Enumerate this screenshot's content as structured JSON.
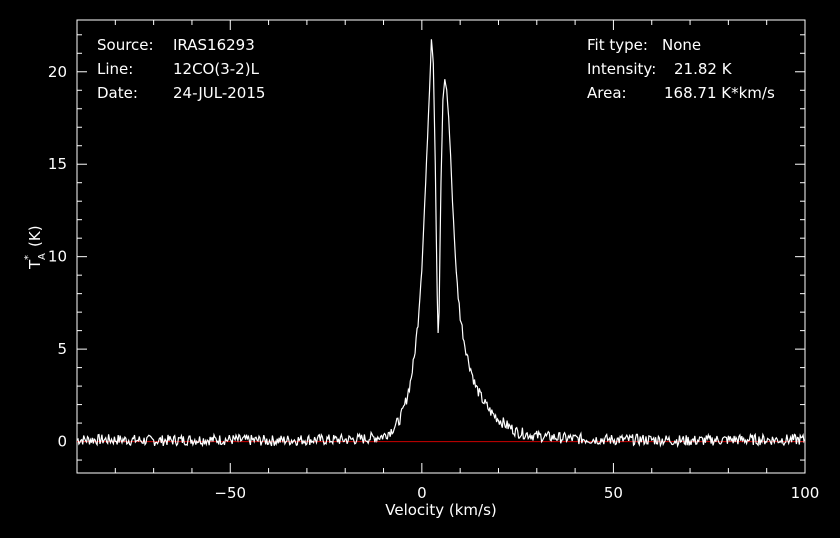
{
  "header_left": {
    "source_label": "Source:",
    "source_value": "IRAS16293",
    "line_label": "Line:",
    "line_value": "12CO(3-2)L",
    "date_label": "Date:",
    "date_value": "24-JUL-2015"
  },
  "header_right": {
    "fit_label": "Fit type:",
    "fit_value": "None",
    "intensity_label": "Intensity:",
    "intensity_value": "21.82 K",
    "area_label": "Area:",
    "area_value": "168.71 K*km/s"
  },
  "colors": {
    "background": "#000000",
    "foreground": "#ffffff",
    "baseline": "#cc0000"
  },
  "chart_data": {
    "type": "line",
    "title": "",
    "xlabel": "Velocity (km/s)",
    "ylabel_main": "T",
    "ylabel_sub": "A",
    "ylabel_sup": "*",
    "ylabel_unit": "(K)",
    "xlim": [
      -90,
      100
    ],
    "ylim": [
      -1.7,
      22.8
    ],
    "x_ticks": [
      -50,
      0,
      50,
      100
    ],
    "x_tick_labels": [
      "−50",
      "0",
      "50",
      "100"
    ],
    "y_ticks": [
      0,
      5,
      10,
      15,
      20
    ],
    "y_tick_labels": [
      "0",
      "5",
      "10",
      "15",
      "20"
    ],
    "baseline_y": 0,
    "series": [
      {
        "x": [
          -90,
          -80,
          -70,
          -60,
          -50,
          -40,
          -30,
          -20,
          -15,
          -10,
          -8,
          -6,
          -5,
          -4,
          -3,
          -2,
          -1,
          0,
          1,
          2,
          2.5,
          3,
          3.5,
          4,
          4.2,
          4.5,
          5,
          5.5,
          6,
          6.5,
          7,
          7.5,
          8,
          9,
          10,
          11,
          12,
          14,
          16,
          18,
          20,
          22,
          25,
          30,
          40,
          50,
          60,
          70,
          80,
          90,
          100
        ],
        "y": [
          0.1,
          0.1,
          0.05,
          0.1,
          0.1,
          0.05,
          0.1,
          0.1,
          0.15,
          0.3,
          0.6,
          1.1,
          1.6,
          2.3,
          3.2,
          4.5,
          6.5,
          9.5,
          14.0,
          19.0,
          21.8,
          20.5,
          15.0,
          8.0,
          5.6,
          7.0,
          14.0,
          18.5,
          19.6,
          19.0,
          17.5,
          15.5,
          13.0,
          9.0,
          6.8,
          5.5,
          4.5,
          3.0,
          2.2,
          1.6,
          1.2,
          0.9,
          0.5,
          0.3,
          0.15,
          0.1,
          0.1,
          0.05,
          0.1,
          0.1,
          0.1
        ]
      }
    ]
  }
}
